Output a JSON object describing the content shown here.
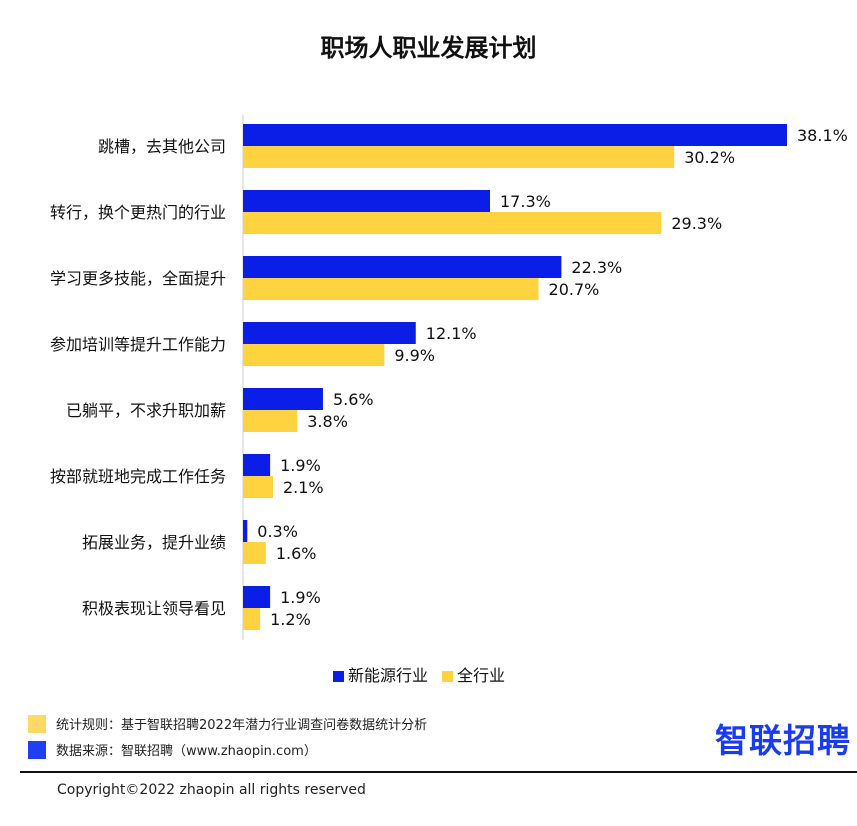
{
  "chart_data": {
    "type": "bar",
    "orientation": "horizontal",
    "title": "职场人职业发展计划",
    "categories": [
      "跳槽，去其他公司",
      "转行，换个更热门的行业",
      "学习更多技能，全面提升",
      "参加培训等提升工作能力",
      "已躺平，不求升职加薪",
      "按部就班地完成工作任务",
      "拓展业务，提升业绩",
      "积极表现让领导看见"
    ],
    "series": [
      {
        "name": "新能源行业",
        "color": "#0A1EE8",
        "values": [
          38.1,
          17.3,
          22.3,
          12.1,
          5.6,
          1.9,
          0.3,
          1.9
        ],
        "labels": [
          "38.1%",
          "17.3%",
          "22.3%",
          "12.1%",
          "5.6%",
          "1.9%",
          "0.3%",
          "1.9%"
        ]
      },
      {
        "name": "全行业",
        "color": "#FFD23F",
        "values": [
          30.2,
          29.3,
          20.7,
          9.9,
          3.8,
          2.1,
          1.6,
          1.2
        ],
        "labels": [
          "30.2%",
          "29.3%",
          "20.7%",
          "9.9%",
          "3.8%",
          "2.1%",
          "1.6%",
          "1.2%"
        ]
      }
    ],
    "legend": "bottom",
    "grid": false
  },
  "footer": {
    "rule_note": "统计规则：基于智联招聘2022年潜力行业调查问卷数据统计分析",
    "source_note": "数据来源：智联招聘（www.zhaopin.com）",
    "logo": "智联招聘",
    "copyright": "Copyright©2022 zhaopin all rights reserved",
    "rule_color": "#FFD966",
    "source_color": "#1F3FF0"
  }
}
